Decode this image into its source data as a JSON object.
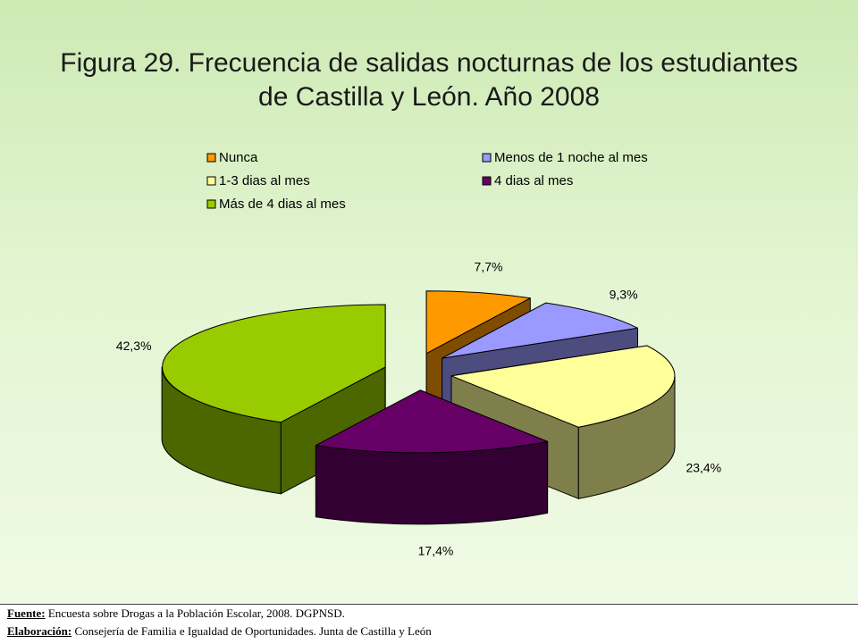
{
  "chart_data": {
    "type": "pie",
    "style": "3d-exploded",
    "title": "Figura 29. Frecuencia de salidas nocturnas de los estudiantes de Castilla y León. Año 2008",
    "legend_position": "top",
    "slices": [
      {
        "label": "Nunca",
        "value": 7.7,
        "value_label": "7,7%",
        "color": "#ff9900",
        "side_color": "#7f4c00"
      },
      {
        "label": "Menos de 1 noche al mes",
        "value": 9.3,
        "value_label": "9,3%",
        "color": "#9999ff",
        "side_color": "#4c4c7f"
      },
      {
        "label": "1-3 dias al mes",
        "value": 23.4,
        "value_label": "23,4%",
        "color": "#ffff99",
        "side_color": "#7f7f4c"
      },
      {
        "label": "4 dias al mes",
        "value": 17.4,
        "value_label": "17,4%",
        "color": "#660066",
        "side_color": "#330033"
      },
      {
        "label": "Más de 4 dias al mes",
        "value": 42.3,
        "value_label": "42,3%",
        "color": "#99cc00",
        "side_color": "#4c6600"
      }
    ]
  },
  "footer": {
    "source_key": "Fuente:",
    "source_text": " Encuesta sobre Drogas a la Población Escolar, 2008. DGPNSD.",
    "made_key": "Elaboración:",
    "made_text": " Consejería de Familia e Igualdad de Oportunidades. Junta de Castilla y León"
  }
}
